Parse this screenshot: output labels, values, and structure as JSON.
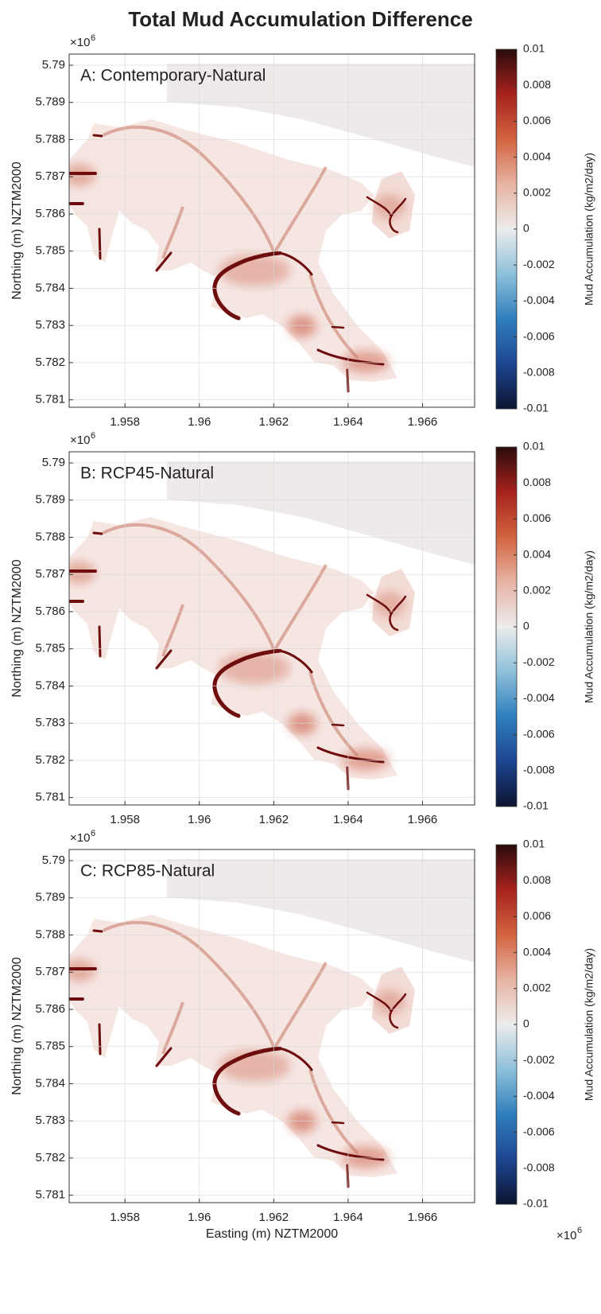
{
  "title": "Total Mud Accumulation Difference",
  "chart_data": [
    {
      "type": "map",
      "panel_label": "A: Contemporary-Natural",
      "ylabel": "Northing (m) NZTM2000",
      "y_multiplier": {
        "base": "×10",
        "exponent": "6"
      },
      "xlim": [
        1.9565,
        1.9674
      ],
      "ylim": [
        5.7808,
        5.7903
      ],
      "xticks": [
        1.958,
        1.96,
        1.962,
        1.964,
        1.966
      ],
      "yticks": [
        5.781,
        5.782,
        5.783,
        5.784,
        5.785,
        5.786,
        5.787,
        5.788,
        5.789,
        5.79
      ],
      "grid": true,
      "colorbar": {
        "label": "Mud Accumulation  (kg/m2/day)",
        "clim": [
          -0.01,
          0.01
        ],
        "cticks": [
          -0.01,
          -0.008,
          -0.006,
          -0.004,
          -0.002,
          0,
          0.002,
          0.004,
          0.006,
          0.008,
          0.01
        ],
        "colormap": [
          "#0c1431",
          "#1d4590",
          "#2f7fbd",
          "#8ec0da",
          "#ececec",
          "#e7b3a3",
          "#d2643f",
          "#a7221d",
          "#2a0b0b"
        ]
      }
    },
    {
      "type": "map",
      "panel_label": "B: RCP45-Natural",
      "ylabel": "Northing (m) NZTM2000",
      "y_multiplier": {
        "base": "×10",
        "exponent": "6"
      },
      "xlim": [
        1.9565,
        1.9674
      ],
      "ylim": [
        5.7808,
        5.7903
      ],
      "xticks": [
        1.958,
        1.96,
        1.962,
        1.964,
        1.966
      ],
      "yticks": [
        5.781,
        5.782,
        5.783,
        5.784,
        5.785,
        5.786,
        5.787,
        5.788,
        5.789,
        5.79
      ],
      "grid": true,
      "colorbar": {
        "label": "Mud Accumulation  (kg/m2/day)",
        "clim": [
          -0.01,
          0.01
        ],
        "cticks": [
          -0.01,
          -0.008,
          -0.006,
          -0.004,
          -0.002,
          0,
          0.002,
          0.004,
          0.006,
          0.008,
          0.01
        ],
        "colormap": [
          "#0c1431",
          "#1d4590",
          "#2f7fbd",
          "#8ec0da",
          "#ececec",
          "#e7b3a3",
          "#d2643f",
          "#a7221d",
          "#2a0b0b"
        ]
      }
    },
    {
      "type": "map",
      "panel_label": "C: RCP85-Natural",
      "xlabel": "Easting (m) NZTM2000",
      "ylabel": "Northing (m) NZTM2000",
      "x_multiplier": {
        "base": "×10",
        "exponent": "6"
      },
      "y_multiplier": {
        "base": "×10",
        "exponent": "6"
      },
      "xlim": [
        1.9565,
        1.9674
      ],
      "ylim": [
        5.7808,
        5.7903
      ],
      "xticks": [
        1.958,
        1.96,
        1.962,
        1.964,
        1.966
      ],
      "yticks": [
        5.781,
        5.782,
        5.783,
        5.784,
        5.785,
        5.786,
        5.787,
        5.788,
        5.789,
        5.79
      ],
      "grid": true,
      "colorbar": {
        "label": "Mud Accumulation  (kg/m2/day)",
        "clim": [
          -0.01,
          0.01
        ],
        "cticks": [
          -0.01,
          -0.008,
          -0.006,
          -0.004,
          -0.002,
          0,
          0.002,
          0.004,
          0.006,
          0.008,
          0.01
        ],
        "colormap": [
          "#0c1431",
          "#1d4590",
          "#2f7fbd",
          "#8ec0da",
          "#ececec",
          "#e7b3a3",
          "#d2643f",
          "#a7221d",
          "#2a0b0b"
        ]
      }
    }
  ]
}
